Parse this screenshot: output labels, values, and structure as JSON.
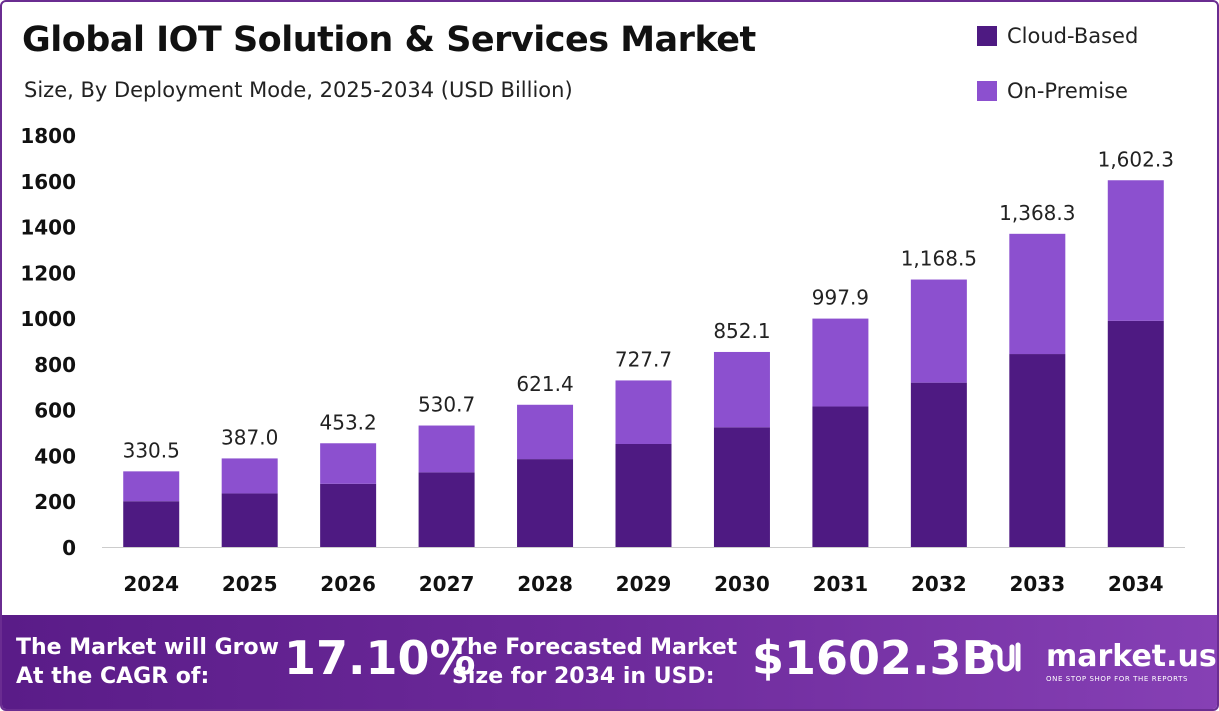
{
  "header": {
    "title": "Global IOT Solution & Services Market",
    "subtitle": "Size, By Deployment Mode, 2025-2034 (USD Billion)"
  },
  "legend": [
    {
      "label": "Cloud-Based",
      "color": "#4e1a82"
    },
    {
      "label": "On-Premise",
      "color": "#8c50cf"
    }
  ],
  "chart_data": {
    "type": "bar",
    "stacked": true,
    "categories": [
      "2024",
      "2025",
      "2026",
      "2027",
      "2028",
      "2029",
      "2030",
      "2031",
      "2032",
      "2033",
      "2034"
    ],
    "series": [
      {
        "name": "Cloud-Based",
        "color": "#4e1a82",
        "values": [
          200,
          234,
          276,
          326,
          384,
          450,
          523,
          614,
          718,
          843,
          988
        ]
      },
      {
        "name": "On-Premise",
        "color": "#8c50cf",
        "values": [
          130.5,
          153.0,
          177.2,
          204.7,
          237.4,
          277.7,
          329.1,
          383.9,
          450.5,
          525.3,
          614.3
        ]
      }
    ],
    "totals": [
      "330.5",
      "387.0",
      "453.2",
      "530.7",
      "621.4",
      "727.7",
      "852.1",
      "997.9",
      "1,168.5",
      "1,368.3",
      "1,602.3"
    ],
    "ylim": [
      0,
      1800
    ],
    "yticks": [
      0,
      200,
      400,
      600,
      800,
      1000,
      1200,
      1400,
      1600,
      1800
    ],
    "grid": false,
    "legend_position": "top-right"
  },
  "footer": {
    "cagr_line1": "The Market will Grow",
    "cagr_line2": "At the CAGR of:",
    "cagr_value": "17.10%",
    "forecast_line1": "The Forecasted Market",
    "forecast_line2": "Size for 2034 in USD:",
    "forecast_value": "$1602.3B",
    "brand": "market.us",
    "tagline": "ONE STOP SHOP FOR THE REPORTS"
  }
}
